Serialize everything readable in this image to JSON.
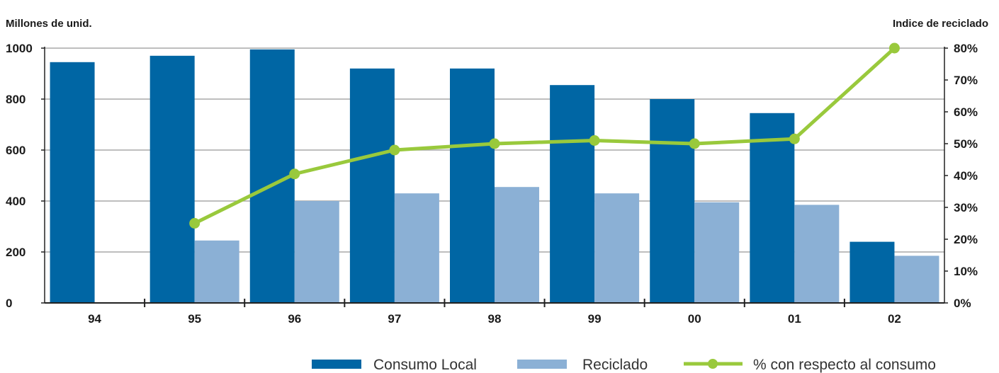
{
  "chart_data": {
    "type": "bar",
    "categories": [
      "94",
      "95",
      "96",
      "97",
      "98",
      "99",
      "00",
      "01",
      "02"
    ],
    "series": [
      {
        "name": "Consumo Local",
        "kind": "bar",
        "axis": "left",
        "color": "#0066a4",
        "values": [
          945,
          970,
          995,
          920,
          920,
          855,
          800,
          745,
          240
        ]
      },
      {
        "name": "Reciclado",
        "kind": "bar",
        "axis": "left",
        "color": "#8bb0d5",
        "values": [
          null,
          245,
          400,
          430,
          455,
          430,
          395,
          385,
          185
        ]
      },
      {
        "name": "% con respecto al consumo",
        "kind": "line",
        "axis": "right",
        "color": "#99c93c",
        "values": [
          null,
          25,
          40.5,
          48,
          50,
          51,
          50,
          51.5,
          80
        ]
      }
    ],
    "left_axis": {
      "title": "Millones de unid.",
      "ylim": [
        0,
        1000
      ],
      "ticks": [
        "0",
        "200",
        "400",
        "600",
        "800",
        "1000"
      ]
    },
    "right_axis": {
      "title": "Indice de reciclado",
      "ylim": [
        0,
        80
      ],
      "ticks": [
        "0%",
        "10%",
        "20%",
        "30%",
        "40%",
        "50%",
        "60%",
        "70%",
        "80%"
      ]
    },
    "grid": true,
    "legend_position": "bottom-right"
  }
}
